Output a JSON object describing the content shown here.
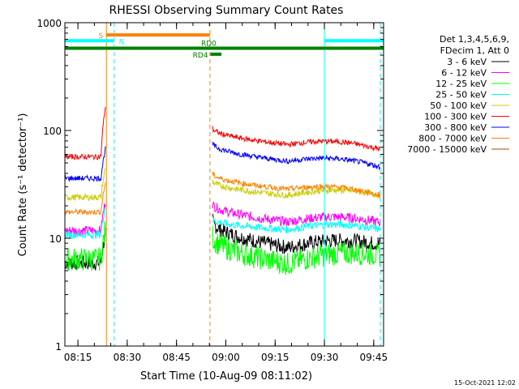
{
  "chart_data": {
    "type": "line",
    "title": "RHESSI Observing Summary Count Rates",
    "xlabel": "Start Time (10-Aug-09 08:11:02)",
    "ylabel": "Count Rate (s⁻¹ detector⁻¹)",
    "yscale": "log",
    "ylim": [
      1,
      1000
    ],
    "xlim": [
      "08:11:02",
      "09:48:00"
    ],
    "y_ticks": [
      "1",
      "10",
      "100",
      "1000"
    ],
    "x_ticks": [
      {
        "t": "08:15",
        "label": "08:15"
      },
      {
        "t": "08:30",
        "label": "08:30"
      },
      {
        "t": "08:45",
        "label": "08:45"
      },
      {
        "t": "09:00",
        "label": "09:00"
      },
      {
        "t": "09:15",
        "label": "09:15"
      },
      {
        "t": "09:30",
        "label": "09:30"
      },
      {
        "t": "09:45",
        "label": "09:45"
      }
    ],
    "legend_header": [
      "Det 1,3,4,5,6,9,",
      "FDecim 1, Att 0"
    ],
    "legend_position": "right",
    "timestamp": "15-Oct-2021 12:02",
    "series": [
      {
        "name": "3 - 6 keV",
        "color": "#000000",
        "before": 5.9,
        "after_start": 14.5,
        "after_min": 8.2,
        "after_end": 8.8,
        "noise": 0.07
      },
      {
        "name": "6 - 12 keV",
        "color": "#ff00ff",
        "before": 11.8,
        "after_start": 21.0,
        "after_min": 14.2,
        "after_end": 14.0,
        "noise": 0.045
      },
      {
        "name": "12 - 25 keV",
        "color": "#00ff00",
        "before": 6.4,
        "after_start": 10.5,
        "after_min": 5.8,
        "after_end": 7.0,
        "noise": 0.11
      },
      {
        "name": "25 - 50 keV",
        "color": "#00ffff",
        "before": 10.8,
        "after_start": 15.0,
        "after_min": 12.0,
        "after_end": 12.0,
        "noise": 0.035
      },
      {
        "name": "50 - 100 keV",
        "color": "#cccc00",
        "before": 24.0,
        "after_start": 34.0,
        "after_min": 25.0,
        "after_end": 25.0,
        "noise": 0.03
      },
      {
        "name": "100 - 300 keV",
        "color": "#ff0000",
        "before": 57.0,
        "after_start": 105.0,
        "after_min": 74.0,
        "after_end": 67.0,
        "noise": 0.025
      },
      {
        "name": "300 - 800 keV",
        "color": "#0000ff",
        "before": 36.0,
        "after_start": 76.0,
        "after_min": 52.0,
        "after_end": 46.0,
        "noise": 0.025
      },
      {
        "name": "800 - 7000 keV",
        "color": "#ff8000",
        "before": 17.5,
        "after_start": 40.0,
        "after_min": 28.5,
        "after_end": 25.0,
        "noise": 0.025
      },
      {
        "name": "7000 - 15000 keV",
        "color": "#a05000",
        "before": 0,
        "after_start": 0,
        "after_min": 0,
        "after_end": 0,
        "noise": 0
      }
    ],
    "data_segments": [
      {
        "start": "08:11:02",
        "end": "08:23:30"
      },
      {
        "start": "08:56:00",
        "end": "09:47:00"
      }
    ],
    "state_bars": [
      {
        "label": "S",
        "start": "08:23:40",
        "end": "08:55:10",
        "color": "#ff8000",
        "level": 770
      },
      {
        "label": "N",
        "start": "08:11:02",
        "end": "08:26:00",
        "color": "#00ffff",
        "level": 680
      },
      {
        "label": "",
        "start": "09:30:00",
        "end": "09:48:00",
        "color": "#00ffff",
        "level": 680
      },
      {
        "label": "RD0",
        "start": "08:11:02",
        "end": "09:48:00",
        "color": "#008000",
        "level": 580
      },
      {
        "label": "RD4",
        "start": "08:55:20",
        "end": "08:58:40",
        "color": "#008000",
        "level": 510
      }
    ],
    "event_lines": [
      {
        "t": "08:11:02",
        "color": "#00ffff",
        "style": "solid"
      },
      {
        "t": "08:23:40",
        "color": "#ff8000",
        "style": "solid"
      },
      {
        "t": "08:26:00",
        "color": "#00ffff",
        "style": "dashed"
      },
      {
        "t": "08:55:10",
        "color": "#ff8000",
        "style": "dashed"
      },
      {
        "t": "09:30:00",
        "color": "#00ffff",
        "style": "solid"
      },
      {
        "t": "09:47:00",
        "color": "#00ffff",
        "style": "dashed"
      }
    ]
  }
}
